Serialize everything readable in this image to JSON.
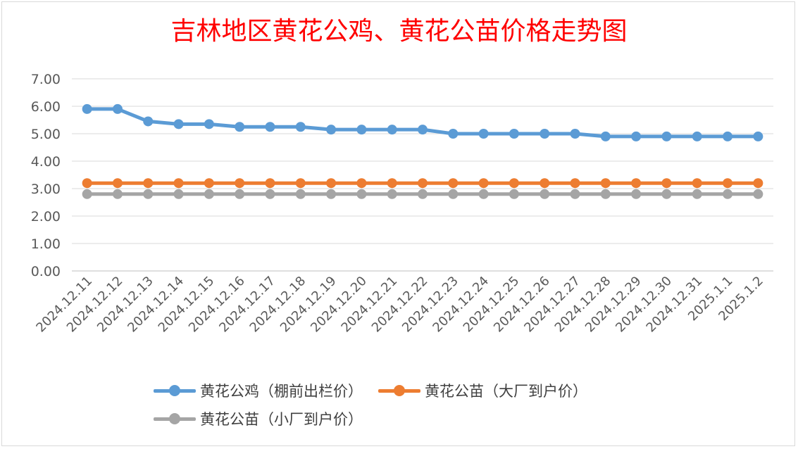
{
  "chart_data": {
    "type": "line",
    "title": "吉林地区黄花公鸡、黄花公苗价格走势图",
    "categories": [
      "2024.12.11",
      "2024.12.12",
      "2024.12.13",
      "2024.12.14",
      "2024.12.15",
      "2024.12.16",
      "2024.12.17",
      "2024.12.18",
      "2024.12.19",
      "2024.12.20",
      "2024.12.21",
      "2024.12.22",
      "2024.12.23",
      "2024.12.24",
      "2024.12.25",
      "2024.12.26",
      "2024.12.27",
      "2024.12.28",
      "2024.12.29",
      "2024.12.30",
      "2024.12.31",
      "2025.1.1",
      "2025.1.2"
    ],
    "ylim": [
      0,
      7
    ],
    "yticks": [
      "0.00",
      "1.00",
      "2.00",
      "3.00",
      "4.00",
      "5.00",
      "6.00",
      "7.00"
    ],
    "grid": true,
    "legend_position": "bottom",
    "series": [
      {
        "name": "黄花公鸡（棚前出栏价）",
        "color": "#5b9bd5",
        "values": [
          5.9,
          5.9,
          5.45,
          5.35,
          5.35,
          5.25,
          5.25,
          5.25,
          5.15,
          5.15,
          5.15,
          5.15,
          5.0,
          5.0,
          5.0,
          5.0,
          5.0,
          4.9,
          4.9,
          4.9,
          4.9,
          4.9,
          4.9
        ]
      },
      {
        "name": "黄花公苗（大厂到户价）",
        "color": "#ed7d31",
        "values": [
          3.2,
          3.2,
          3.2,
          3.2,
          3.2,
          3.2,
          3.2,
          3.2,
          3.2,
          3.2,
          3.2,
          3.2,
          3.2,
          3.2,
          3.2,
          3.2,
          3.2,
          3.2,
          3.2,
          3.2,
          3.2,
          3.2,
          3.2
        ]
      },
      {
        "name": "黄花公苗（小厂到户价）",
        "color": "#a5a5a5",
        "values": [
          2.8,
          2.8,
          2.8,
          2.8,
          2.8,
          2.8,
          2.8,
          2.8,
          2.8,
          2.8,
          2.8,
          2.8,
          2.8,
          2.8,
          2.8,
          2.8,
          2.8,
          2.8,
          2.8,
          2.8,
          2.8,
          2.8,
          2.8
        ]
      }
    ]
  }
}
